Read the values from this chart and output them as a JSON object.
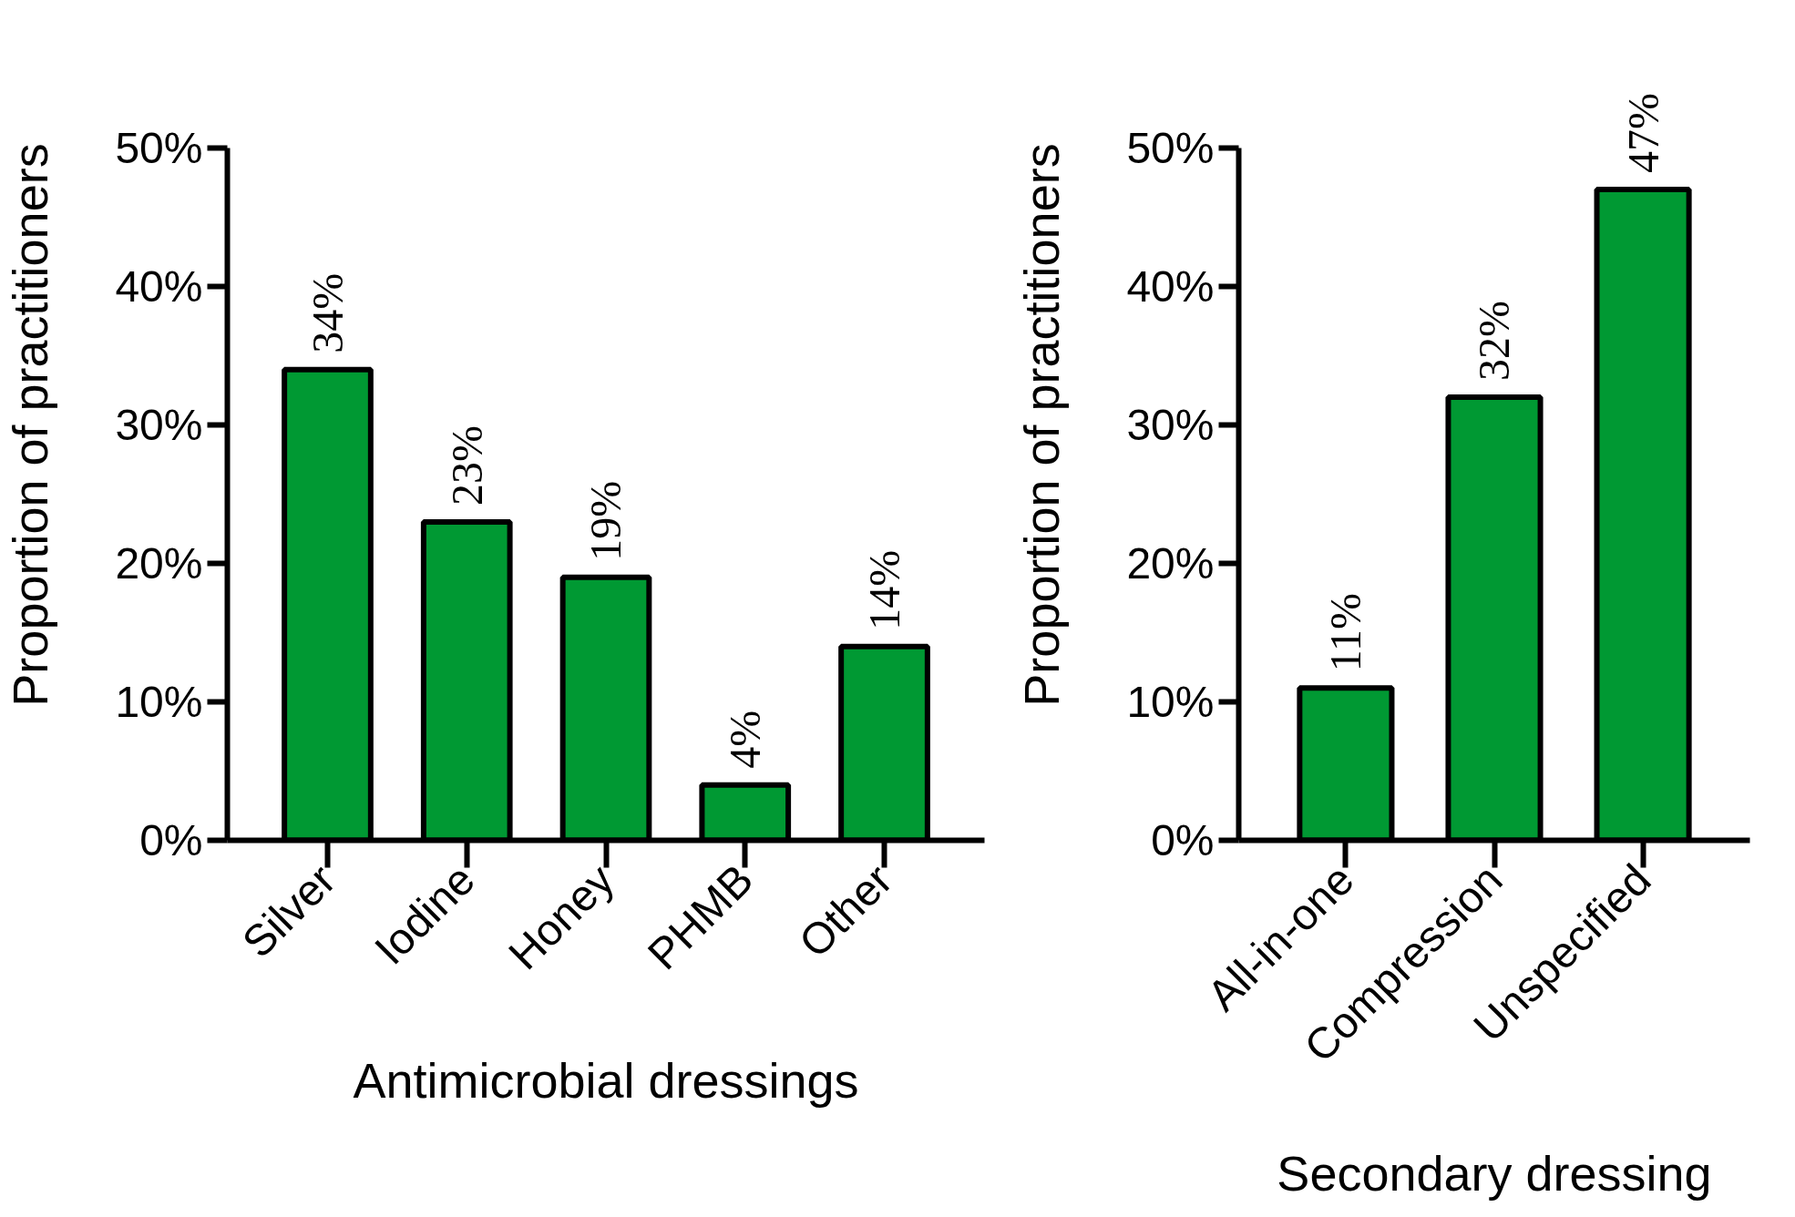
{
  "chart_data": [
    {
      "type": "bar",
      "xlabel": "Antimicrobial dressings",
      "ylabel": "Proportion of practitioners",
      "categories": [
        "Silver",
        "Iodine",
        "Honey",
        "PHMB",
        "Other"
      ],
      "values": [
        34,
        23,
        19,
        4,
        14
      ],
      "value_labels": [
        "34%",
        "23%",
        "19%",
        "4%",
        "14%"
      ],
      "color": "#009933",
      "ylim": [
        0,
        50
      ],
      "yticks": [
        {
          "value": 0,
          "label": "0%"
        },
        {
          "value": 10,
          "label": "10%"
        },
        {
          "value": 20,
          "label": "20%"
        },
        {
          "value": 30,
          "label": "30%"
        },
        {
          "value": 40,
          "label": "40%"
        },
        {
          "value": 50,
          "label": "50%"
        }
      ]
    },
    {
      "type": "bar",
      "xlabel": "Secondary dressing",
      "ylabel": "Proportion of practitioners",
      "categories": [
        "All-in-one",
        "Compression",
        "Unspecified"
      ],
      "values": [
        11,
        32,
        47
      ],
      "value_labels": [
        "11%",
        "32%",
        "47%"
      ],
      "color": "#009933",
      "ylim": [
        0,
        50
      ],
      "yticks": [
        {
          "value": 0,
          "label": "0%"
        },
        {
          "value": 10,
          "label": "10%"
        },
        {
          "value": 20,
          "label": "20%"
        },
        {
          "value": 30,
          "label": "30%"
        },
        {
          "value": 40,
          "label": "40%"
        },
        {
          "value": 50,
          "label": "50%"
        }
      ]
    }
  ]
}
